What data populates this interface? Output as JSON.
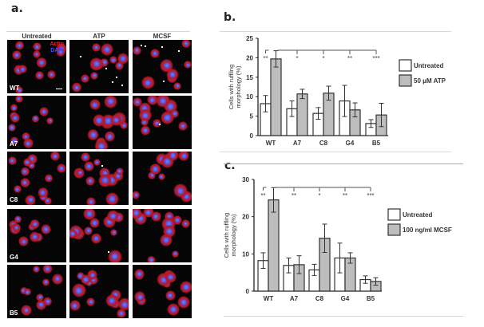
{
  "figure": {
    "panel_a_label": "a.",
    "panel_b_label": "b.",
    "panel_c_label": "c.",
    "microscopy": {
      "columns": [
        "Untreated",
        "ATP",
        "MCSF"
      ],
      "rows": [
        "WT",
        "A7",
        "C8",
        "G4",
        "B5"
      ],
      "stain_legend": {
        "actin": "Actin",
        "dapi": "DAPI"
      },
      "colors": {
        "actin": "#e0202a",
        "dapi": "#4a4cff",
        "background": "#050505"
      }
    }
  },
  "chart_data": [
    {
      "type": "bar",
      "panel": "b",
      "title": "",
      "xlabel": "",
      "ylabel": "Cells with ruffling morphology (%)",
      "ylim": [
        0,
        25
      ],
      "yticks": [
        0,
        5,
        10,
        15,
        20,
        25
      ],
      "categories": [
        "WT",
        "A7",
        "C8",
        "G4",
        "B5"
      ],
      "series": [
        {
          "name": "Untreated",
          "color": "#ffffff",
          "values": [
            8.2,
            6.9,
            5.7,
            8.9,
            3.1
          ],
          "errors": [
            2.1,
            2.0,
            1.5,
            4.0,
            1.0
          ]
        },
        {
          "name": "50 μM ATP",
          "color": "#bdbdbd",
          "values": [
            19.7,
            10.7,
            10.9,
            6.6,
            5.3
          ],
          "errors": [
            2.1,
            1.2,
            1.8,
            1.8,
            3.0
          ]
        }
      ],
      "significance": [
        "**",
        "*",
        "*",
        "**",
        "***"
      ],
      "legend": [
        "Untreated",
        "50 μM ATP"
      ],
      "legend_position": "right",
      "grid": false
    },
    {
      "type": "bar",
      "panel": "c",
      "title": "",
      "xlabel": "",
      "ylabel": "Cells with ruffling morphology (%)",
      "ylim": [
        0,
        30
      ],
      "yticks": [
        0,
        10,
        20,
        30
      ],
      "categories": [
        "WT",
        "A7",
        "C8",
        "G4",
        "B5"
      ],
      "series": [
        {
          "name": "Untreated",
          "color": "#ffffff",
          "values": [
            8.2,
            6.9,
            5.7,
            8.9,
            3.1
          ],
          "errors": [
            2.1,
            2.0,
            1.5,
            4.0,
            1.0
          ]
        },
        {
          "name": "100 ng/ml MCSF",
          "color": "#bdbdbd",
          "values": [
            24.5,
            7.1,
            14.2,
            8.9,
            2.6
          ],
          "errors": [
            3.3,
            2.4,
            3.8,
            1.4,
            1.0
          ]
        }
      ],
      "significance": [
        "**",
        "**",
        "*",
        "**",
        "***"
      ],
      "legend": [
        "Untreated",
        "100 ng/ml MCSF"
      ],
      "legend_position": "right",
      "grid": false
    }
  ]
}
